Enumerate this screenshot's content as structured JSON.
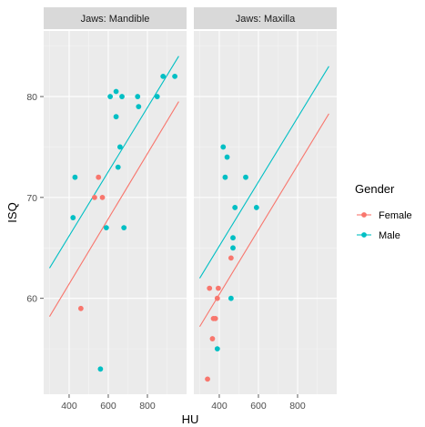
{
  "chart_data": {
    "type": "scatter",
    "xlabel": "HU",
    "ylabel": "ISQ",
    "x_ticks": [
      400,
      600,
      800
    ],
    "y_ticks": [
      60,
      70,
      80
    ],
    "xlim": [
      270,
      1000
    ],
    "ylim": [
      50.5,
      86.5
    ],
    "grid": true,
    "legend": {
      "title": "Gender",
      "position": "right",
      "entries": [
        {
          "name": "Female",
          "color": "#F8766D"
        },
        {
          "name": "Male",
          "color": "#00BFC4"
        }
      ]
    },
    "panels": [
      {
        "strip": "Jaws: Mandible",
        "points": {
          "Female": [
            [
              460,
              59
            ],
            [
              530,
              70
            ],
            [
              550,
              72
            ],
            [
              570,
              70
            ]
          ],
          "Male": [
            [
              420,
              68
            ],
            [
              430,
              72
            ],
            [
              560,
              53
            ],
            [
              590,
              67
            ],
            [
              610,
              80
            ],
            [
              640,
              80.5
            ],
            [
              640,
              78
            ],
            [
              650,
              73
            ],
            [
              660,
              75
            ],
            [
              670,
              80
            ],
            [
              680,
              67
            ],
            [
              750,
              80
            ],
            [
              755,
              79
            ],
            [
              850,
              80
            ],
            [
              880,
              82
            ],
            [
              940,
              82
            ]
          ]
        },
        "lines": {
          "Female": {
            "x": [
              300,
              960
            ],
            "y": [
              58.2,
              79.5
            ]
          },
          "Male": {
            "x": [
              300,
              960
            ],
            "y": [
              63,
              84
            ]
          }
        }
      },
      {
        "strip": "Jaws: Maxilla",
        "points": {
          "Female": [
            [
              340,
              52
            ],
            [
              350,
              61
            ],
            [
              365,
              56
            ],
            [
              370,
              58
            ],
            [
              380,
              58
            ],
            [
              390,
              60
            ],
            [
              395,
              61
            ],
            [
              460,
              64
            ]
          ],
          "Male": [
            [
              390,
              55
            ],
            [
              420,
              75
            ],
            [
              430,
              72
            ],
            [
              440,
              74
            ],
            [
              460,
              60
            ],
            [
              470,
              65
            ],
            [
              470,
              66
            ],
            [
              480,
              69
            ],
            [
              535,
              72
            ],
            [
              590,
              69
            ]
          ]
        },
        "lines": {
          "Female": {
            "x": [
              300,
              960
            ],
            "y": [
              57.2,
              78.3
            ]
          },
          "Male": {
            "x": [
              300,
              960
            ],
            "y": [
              62,
              83
            ]
          }
        }
      }
    ]
  }
}
